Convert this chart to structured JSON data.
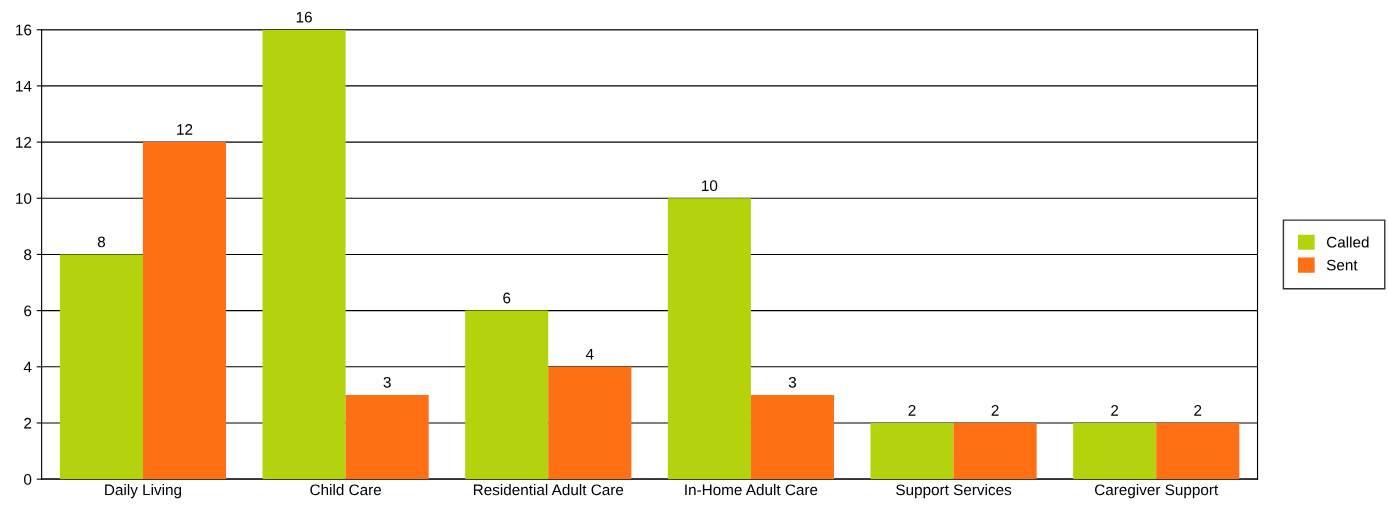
{
  "chart_data": {
    "type": "bar",
    "categories": [
      "Daily Living",
      "Child Care",
      "Residential Adult Care",
      "In-Home Adult Care",
      "Support Services",
      "Caregiver Support"
    ],
    "series": [
      {
        "name": "Called",
        "color": "#b5d30d",
        "values": [
          8,
          16,
          6,
          10,
          2,
          2
        ]
      },
      {
        "name": "Sent",
        "color": "#ff7014",
        "values": [
          12,
          3,
          4,
          3,
          2,
          2
        ]
      }
    ],
    "ylim": [
      0,
      16
    ],
    "yticks": [
      0,
      2,
      4,
      6,
      8,
      10,
      12,
      14,
      16
    ],
    "grid": "y",
    "legend": "right",
    "data_labels": true
  }
}
